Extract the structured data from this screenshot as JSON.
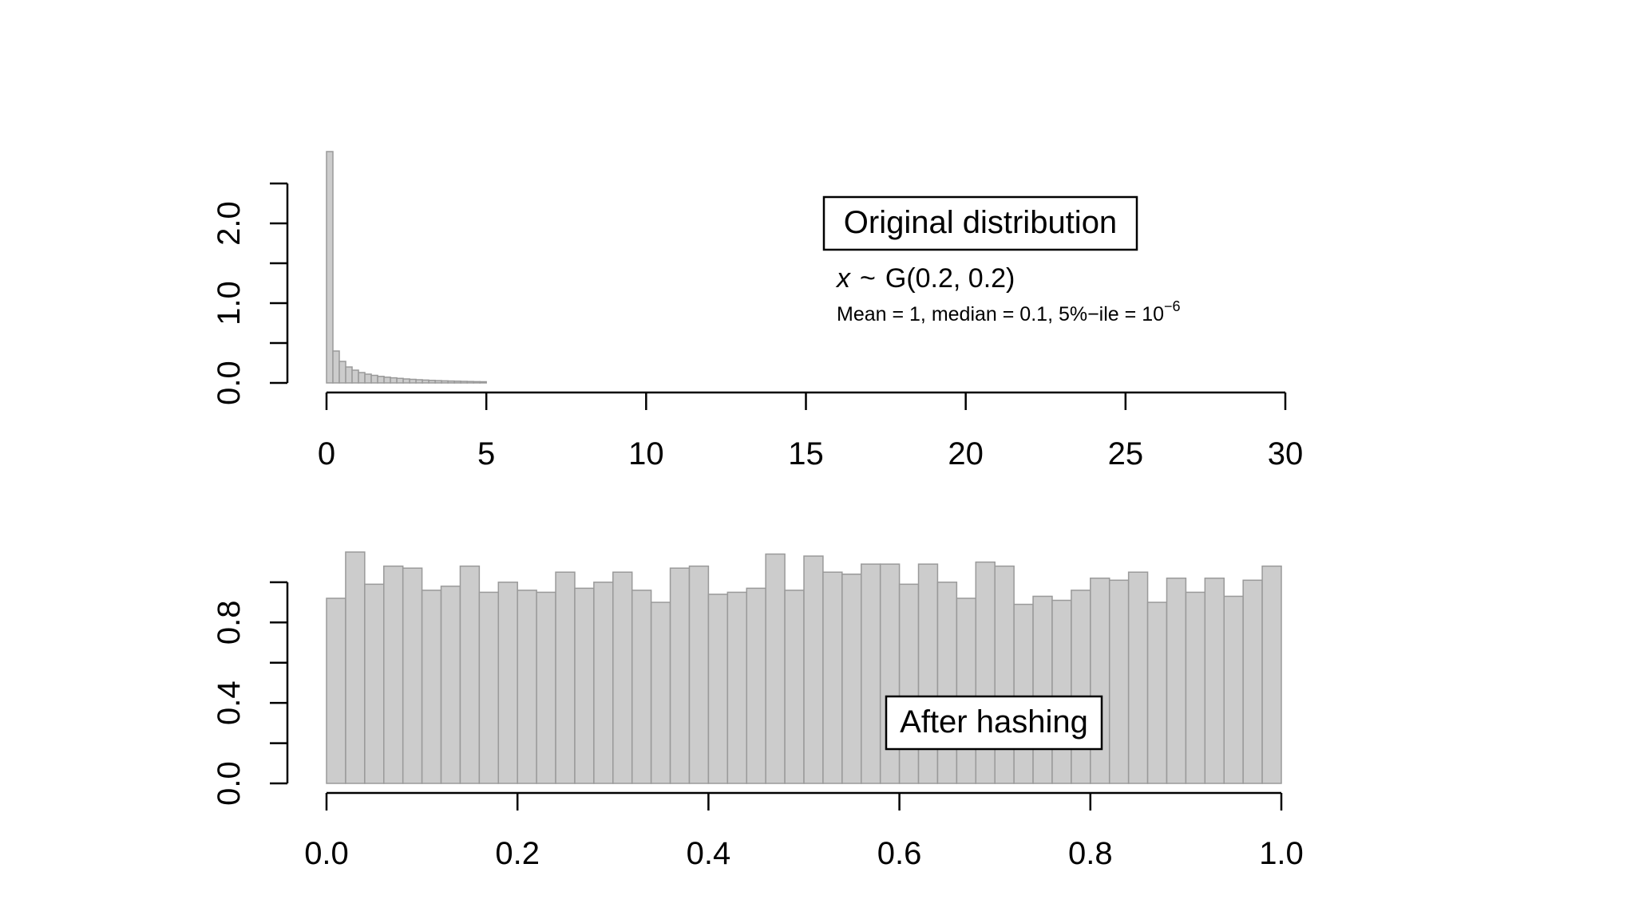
{
  "chart_data": [
    {
      "type": "bar",
      "name": "original",
      "annotation_box": "Original distribution",
      "formula": {
        "variable": "x",
        "tilde": "~",
        "dist_symbol": "G",
        "params": "(0.2, 0.2)"
      },
      "stats": {
        "text": "Mean = 1, median = 0.1, 5%−ile = ",
        "base": "10",
        "exponent": "−6"
      },
      "xlim": [
        0,
        30
      ],
      "ylim": [
        0,
        2.9
      ],
      "x_ticks": [
        0,
        5,
        10,
        15,
        20,
        25,
        30
      ],
      "x_tick_labels": [
        "0",
        "5",
        "10",
        "15",
        "20",
        "25",
        "30"
      ],
      "y_ticks": [
        0,
        0.5,
        1.0,
        1.5,
        2.0,
        2.5
      ],
      "y_tick_labels": [
        "0.0",
        "",
        "1.0",
        "",
        "2.0",
        ""
      ],
      "bin_width": 0.2,
      "bin_start": 0,
      "values": [
        2.9,
        0.4,
        0.27,
        0.2,
        0.16,
        0.13,
        0.11,
        0.095,
        0.082,
        0.072,
        0.064,
        0.057,
        0.05,
        0.045,
        0.04,
        0.036,
        0.032,
        0.029,
        0.026,
        0.024,
        0.022,
        0.02,
        0.018,
        0.016,
        0.015
      ]
    },
    {
      "type": "bar",
      "name": "hashed",
      "annotation_box": "After hashing",
      "xlim": [
        0,
        1
      ],
      "ylim": [
        0,
        1.15
      ],
      "x_ticks": [
        0,
        0.2,
        0.4,
        0.6,
        0.8,
        1.0
      ],
      "x_tick_labels": [
        "0.0",
        "0.2",
        "0.4",
        "0.6",
        "0.8",
        "1.0"
      ],
      "y_ticks": [
        0,
        0.2,
        0.4,
        0.6,
        0.8,
        1.0
      ],
      "y_tick_labels": [
        "0.0",
        "",
        "0.4",
        "",
        "0.8",
        ""
      ],
      "bin_width": 0.02,
      "bin_start": 0,
      "values": [
        0.92,
        1.15,
        0.99,
        1.08,
        1.07,
        0.96,
        0.98,
        1.08,
        0.95,
        1.0,
        0.96,
        0.95,
        1.05,
        0.97,
        1.0,
        1.05,
        0.96,
        0.9,
        1.07,
        1.08,
        0.94,
        0.95,
        0.97,
        1.14,
        0.96,
        1.13,
        1.05,
        1.04,
        1.09,
        1.09,
        0.99,
        1.09,
        1.0,
        0.92,
        1.1,
        1.08,
        0.89,
        0.93,
        0.91,
        0.96,
        1.02,
        1.01,
        1.05,
        0.9,
        1.02,
        0.95,
        1.02,
        0.93,
        1.01,
        1.08
      ]
    }
  ]
}
